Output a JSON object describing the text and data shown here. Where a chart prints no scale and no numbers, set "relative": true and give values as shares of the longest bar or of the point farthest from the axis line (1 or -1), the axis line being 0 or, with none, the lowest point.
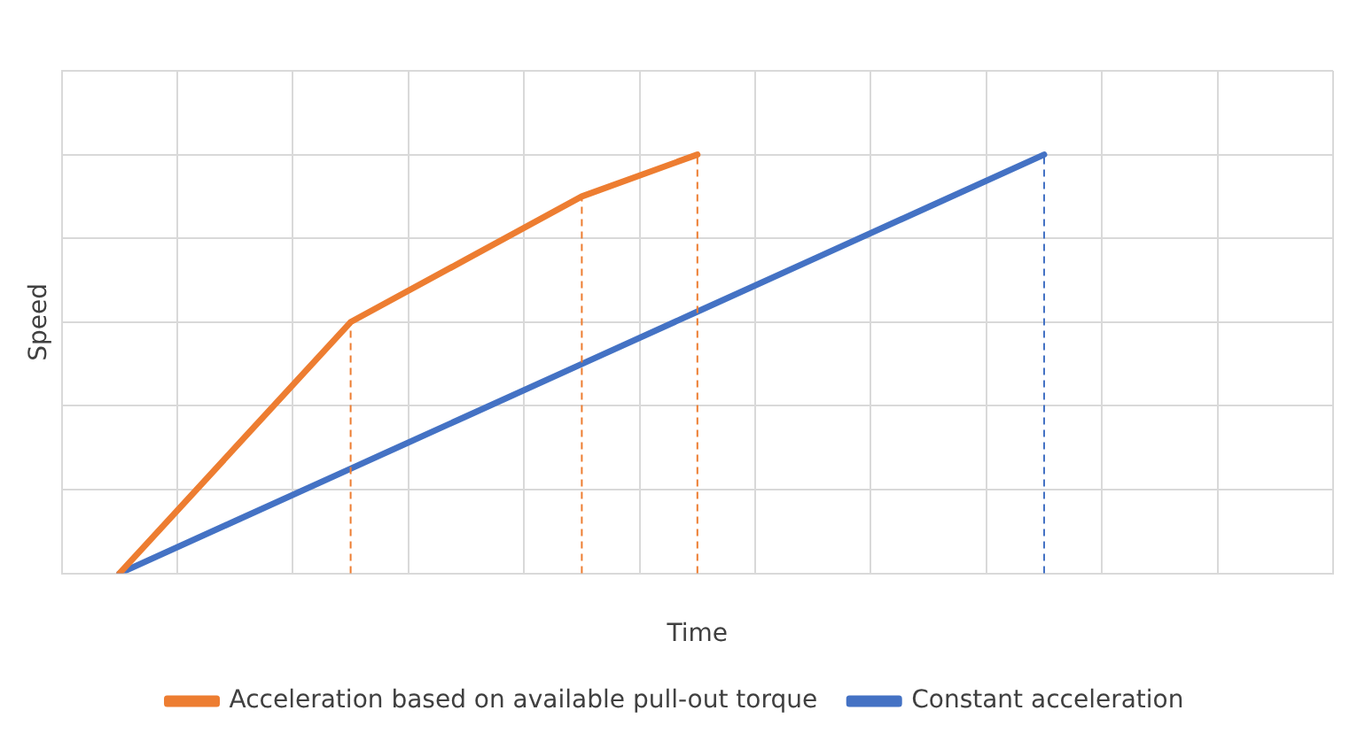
{
  "chart_data": {
    "type": "line",
    "relative": true,
    "xlabel": "Time",
    "ylabel": "Speed",
    "categories": [
      null,
      null,
      null,
      null,
      null,
      null,
      null,
      null,
      null,
      null,
      null
    ],
    "series": [
      {
        "name": "Acceleration based on available pull-out torque",
        "color": "#ed7d31",
        "values": [
          0,
          0.3,
          0.6,
          0.75,
          0.9,
          1,
          null,
          null,
          null,
          null,
          null
        ]
      },
      {
        "name": "Constant acceleration",
        "color": "#4472c4",
        "values": [
          0,
          0.125,
          0.25,
          0.375,
          0.5,
          0.625,
          0.75,
          0.875,
          1,
          null,
          null
        ]
      }
    ],
    "grid": true,
    "legend": "bottom",
    "marker": "none",
    "line_style": "solid"
  }
}
